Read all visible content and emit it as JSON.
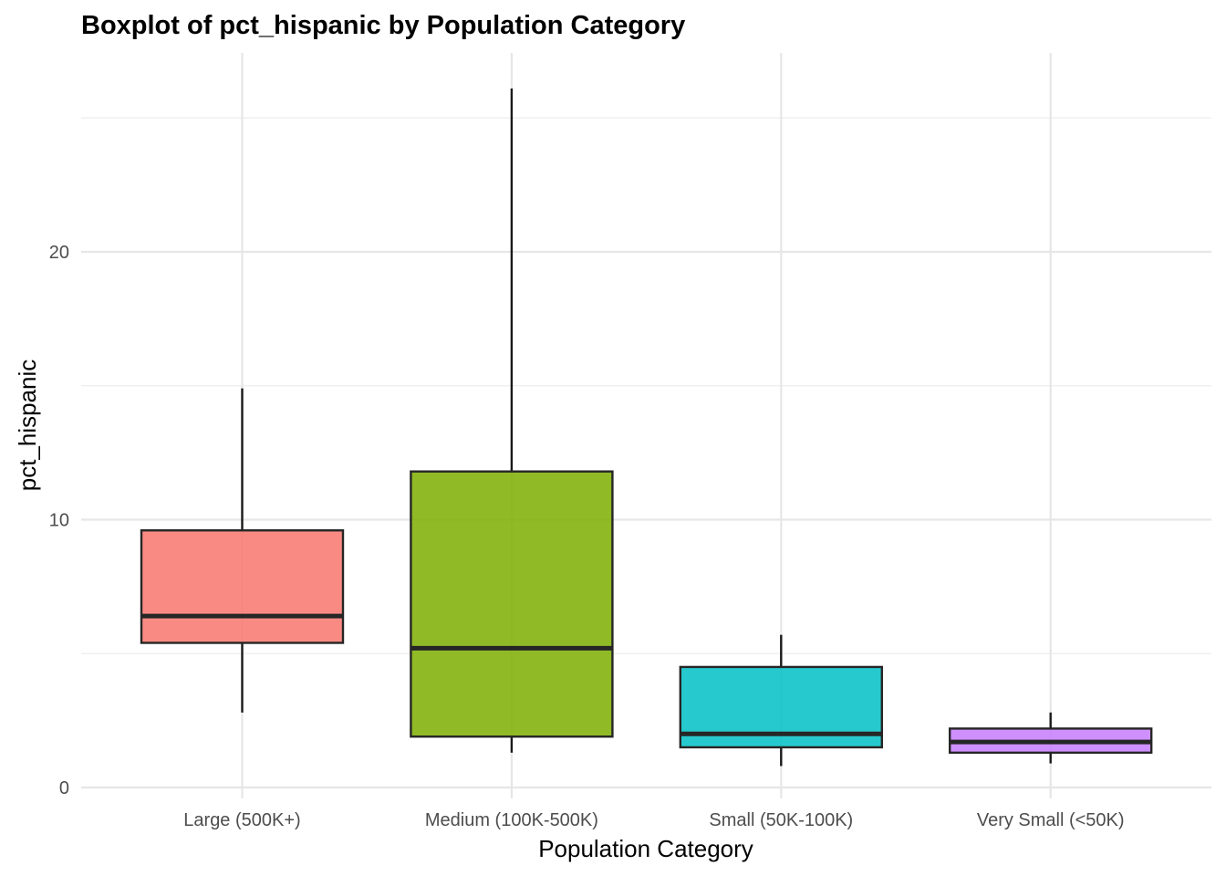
{
  "chart_data": {
    "type": "boxplot",
    "title": "Boxplot of pct_hispanic by Population Category",
    "xlabel": "Population Category",
    "ylabel": "pct_hispanic",
    "ylim": [
      -0.8,
      27.5
    ],
    "yticks": [
      0,
      10,
      20
    ],
    "grid": true,
    "legend": "none",
    "categories": [
      "Large (500K+)",
      "Medium (100K-500K)",
      "Small (50K-100K)",
      "Very Small (<50K)"
    ],
    "boxes": [
      {
        "category": "Large (500K+)",
        "min": 2.8,
        "q1": 5.4,
        "median": 6.4,
        "q3": 9.6,
        "max": 14.9,
        "color": "#F8766D"
      },
      {
        "category": "Medium (100K-500K)",
        "min": 1.3,
        "q1": 1.9,
        "median": 5.2,
        "q3": 11.8,
        "max": 26.1,
        "color": "#7CAE00"
      },
      {
        "category": "Small (50K-100K)",
        "min": 0.8,
        "q1": 1.5,
        "median": 2.0,
        "q3": 4.5,
        "max": 5.7,
        "color": "#00BFC4"
      },
      {
        "category": "Very Small (<50K)",
        "min": 0.9,
        "q1": 1.3,
        "median": 1.7,
        "q3": 2.2,
        "max": 2.8,
        "color": "#C77CFF"
      }
    ]
  }
}
